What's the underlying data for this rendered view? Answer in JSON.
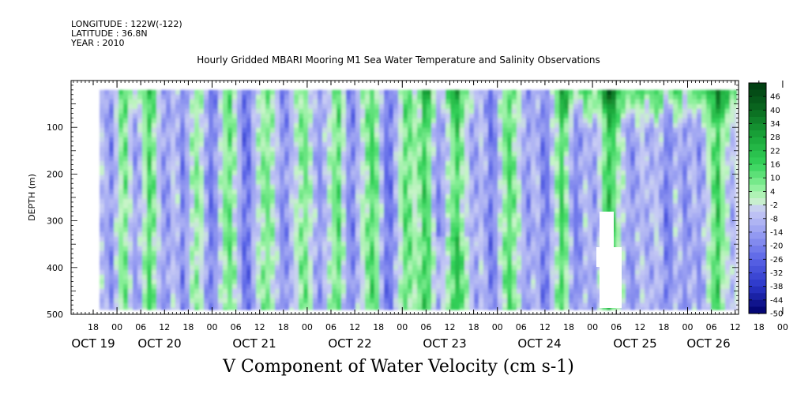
{
  "header": {
    "longitude": "LONGITUDE : 122W(-122)",
    "latitude": "LATITUDE : 36.8N",
    "year": "YEAR : 2010"
  },
  "chart_data": {
    "type": "heatmap",
    "title": "Hourly Gridded MBARI Mooring M1 Sea Water Temperature and Salinity Observations",
    "xlabel": "V Component of Water Velocity (cm s-1)",
    "ylabel": "DEPTH (m)",
    "y_ticks": [
      100,
      200,
      300,
      400,
      500
    ],
    "y_range": [
      0,
      500
    ],
    "y_inverted": true,
    "x_hour_ticks": [
      "18",
      "00",
      "06",
      "12",
      "18",
      "00",
      "06",
      "12",
      "18",
      "00",
      "06",
      "12",
      "18",
      "00",
      "06",
      "12",
      "18",
      "00",
      "06",
      "12",
      "18",
      "00",
      "06",
      "12",
      "18",
      "00",
      "06",
      "12",
      "18",
      "00",
      "06",
      "12"
    ],
    "x_day_labels": [
      "OCT 19",
      "OCT 20",
      "OCT 21",
      "OCT 22",
      "OCT 23",
      "OCT 24",
      "OCT 25",
      "OCT 26"
    ],
    "colorbar": {
      "labels": [
        "46",
        "40",
        "34",
        "28",
        "22",
        "16",
        "10",
        "4",
        "-2",
        "-8",
        "-14",
        "-20",
        "-26",
        "-32",
        "-38",
        "-44",
        "-50"
      ],
      "range": [
        -50,
        52
      ],
      "levels": [
        {
          "v": 52,
          "color": "#003a10"
        },
        {
          "v": 40,
          "color": "#0a6a20"
        },
        {
          "v": 28,
          "color": "#1aa63a"
        },
        {
          "v": 16,
          "color": "#34d25a"
        },
        {
          "v": 6,
          "color": "#8cf09a"
        },
        {
          "v": 0,
          "color": "#c8f4c8"
        },
        {
          "v": -4,
          "color": "#c8ccf4"
        },
        {
          "v": -14,
          "color": "#9aa0f2"
        },
        {
          "v": -26,
          "color": "#5a64e6"
        },
        {
          "v": -38,
          "color": "#2a36c8"
        },
        {
          "v": -50,
          "color": "#00006a"
        }
      ]
    },
    "field_note": "V velocity (cm/s) vs time (Oct 19 18:00 to Oct 26 12:00, 2010) and depth (~20-490 m); alternating green (positive, strongest near surface on Oct 24-26, up to ~46) and blue (negative, to ~-30) vertical bands; data gap near Oct 25 00-06 below ~270 m"
  }
}
